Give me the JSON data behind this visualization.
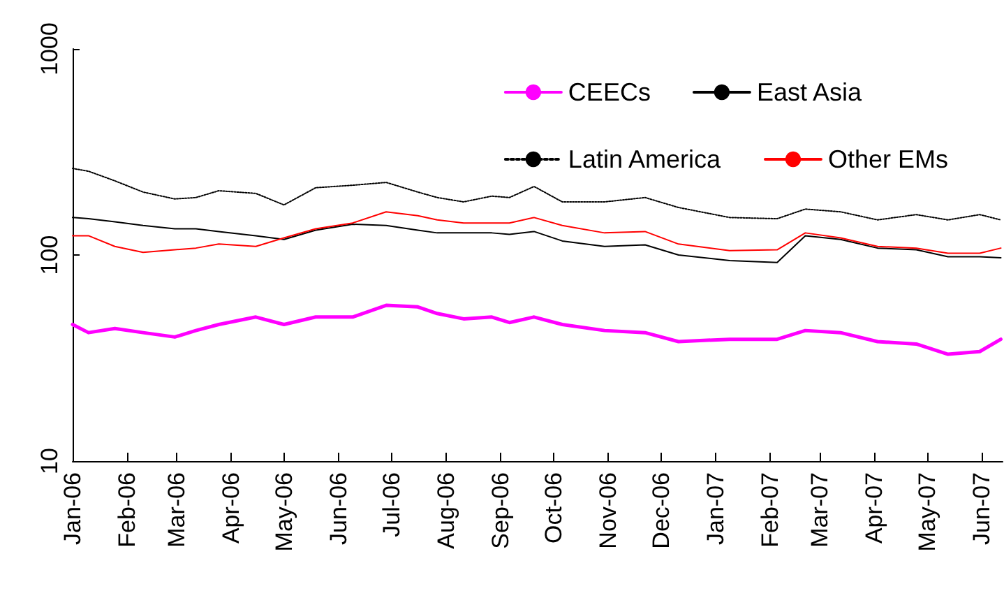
{
  "chart_data": {
    "type": "line",
    "log": "y",
    "grid": false,
    "legend": "top right",
    "marker": "none",
    "x": [
      "2006-01-01",
      "2006-01-10",
      "2006-01-25",
      "2006-02-10",
      "2006-02-28",
      "2006-03-12",
      "2006-03-25",
      "2006-04-15",
      "2006-05-01",
      "2006-05-19",
      "2006-06-09",
      "2006-06-28",
      "2006-07-16",
      "2006-07-27",
      "2006-08-11",
      "2006-08-27",
      "2006-09-06",
      "2006-09-20",
      "2006-10-06",
      "2006-10-30",
      "2006-11-22",
      "2006-12-11",
      "2007-01-09",
      "2007-02-05",
      "2007-02-21",
      "2007-03-13",
      "2007-04-03",
      "2007-04-25",
      "2007-05-13",
      "2007-05-31",
      "2007-06-12"
    ],
    "series": [
      {
        "name": "CEECs",
        "color": "#ff00ff",
        "line_style": "solid",
        "values": [
          46,
          42,
          44,
          42,
          40,
          43,
          46,
          50,
          46,
          50,
          50,
          57,
          56,
          52,
          49,
          50,
          47,
          50,
          46,
          43,
          42,
          38,
          39,
          39,
          43,
          42,
          38,
          37,
          33,
          34,
          39
        ]
      },
      {
        "name": "East Asia",
        "color": "#000000",
        "line_style": "solid",
        "values": [
          152,
          150,
          145,
          139,
          134,
          134,
          130,
          124,
          119,
          132,
          141,
          139,
          132,
          128,
          128,
          128,
          126,
          130,
          117,
          110,
          112,
          100,
          94,
          92,
          124,
          119,
          108,
          106,
          98,
          98,
          97
        ]
      },
      {
        "name": "Latin America",
        "color": "#000000",
        "line_style": "dotted",
        "values": [
          263,
          255,
          229,
          202,
          187,
          190,
          205,
          199,
          175,
          212,
          218,
          225,
          202,
          190,
          181,
          193,
          190,
          215,
          181,
          181,
          190,
          170,
          152,
          150,
          167,
          162,
          148,
          157,
          148,
          157,
          148
        ]
      },
      {
        "name": "Other EMs",
        "color": "#ff0000",
        "line_style": "solid",
        "values": [
          124,
          124,
          110,
          103,
          106,
          108,
          113,
          110,
          121,
          134,
          143,
          162,
          155,
          148,
          143,
          143,
          143,
          152,
          139,
          128,
          130,
          113,
          105,
          106,
          128,
          121,
          110,
          108,
          102,
          102,
          108
        ]
      }
    ],
    "xlim": [
      "2006-01-01",
      "2007-06-13"
    ],
    "xticks": [
      {
        "value": "2006-01-01",
        "label": "Jan-06"
      },
      {
        "value": "2006-02-01",
        "label": "Feb-06"
      },
      {
        "value": "2006-03-01",
        "label": "Mar-06"
      },
      {
        "value": "2006-04-01",
        "label": "Apr-06"
      },
      {
        "value": "2006-05-01",
        "label": "May-06"
      },
      {
        "value": "2006-06-01",
        "label": "Jun-06"
      },
      {
        "value": "2006-07-01",
        "label": "Jul-06"
      },
      {
        "value": "2006-08-01",
        "label": "Aug-06"
      },
      {
        "value": "2006-09-01",
        "label": "Sep-06"
      },
      {
        "value": "2006-10-01",
        "label": "Oct-06"
      },
      {
        "value": "2006-11-01",
        "label": "Nov-06"
      },
      {
        "value": "2006-12-01",
        "label": "Dec-06"
      },
      {
        "value": "2007-01-01",
        "label": "Jan-07"
      },
      {
        "value": "2007-02-01",
        "label": "Feb-07"
      },
      {
        "value": "2007-03-01",
        "label": "Mar-07"
      },
      {
        "value": "2007-04-01",
        "label": "Apr-07"
      },
      {
        "value": "2007-05-01",
        "label": "May-07"
      },
      {
        "value": "2007-06-01",
        "label": "Jun-07"
      }
    ],
    "ylim": [
      10,
      1000
    ],
    "yticks": [
      10,
      100,
      1000
    ]
  }
}
